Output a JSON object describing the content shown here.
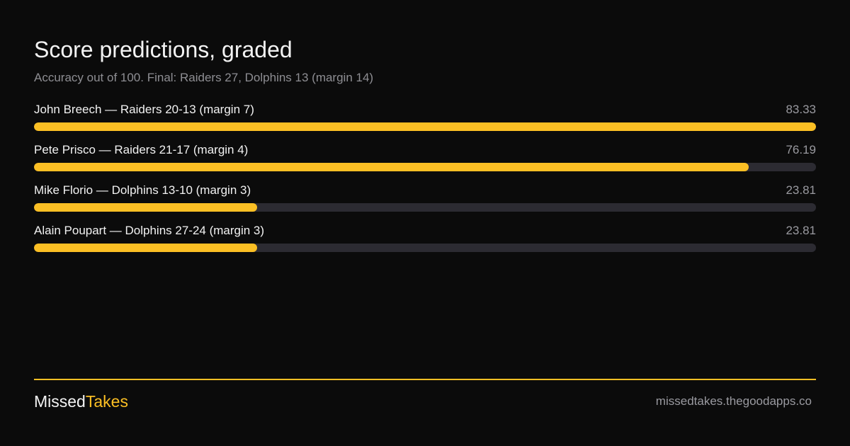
{
  "header": {
    "title": "Score predictions, graded",
    "subtitle": "Accuracy out of 100. Final: Raiders 27, Dolphins 13 (margin 14)"
  },
  "colors": {
    "background": "#0b0b0b",
    "accent": "#fbbf24",
    "track": "#2c2b32",
    "muted_text": "#9a9aa0"
  },
  "chart_data": {
    "type": "bar",
    "orientation": "horizontal",
    "title": "Score predictions, graded",
    "subtitle": "Accuracy out of 100. Final: Raiders 27, Dolphins 13 (margin 14)",
    "xlim": [
      0,
      83.33
    ],
    "categories": [
      "John Breech — Raiders 20-13 (margin 7)",
      "Pete Prisco — Raiders 21-17 (margin 4)",
      "Mike Florio — Dolphins 13-10 (margin 3)",
      "Alain Poupart — Dolphins 27-24 (margin 3)"
    ],
    "values": [
      83.33,
      76.19,
      23.81,
      23.81
    ],
    "value_labels": [
      "83.33",
      "76.19",
      "23.81",
      "23.81"
    ],
    "grid": false,
    "legend": "none"
  },
  "footer": {
    "brand_part1": "Missed",
    "brand_part2": "Takes",
    "site": "missedtakes.thegoodapps.co"
  }
}
